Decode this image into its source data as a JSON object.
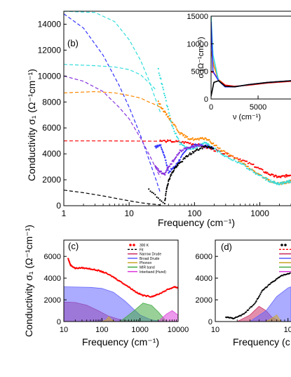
{
  "chart_data": [
    {
      "panel": "(b)",
      "type": "line",
      "xlabel": "Frequency (cm⁻¹)",
      "ylabel": "Conductivity σ₁ (Ω⁻¹cm⁻¹)",
      "xscale": "log",
      "xlim": [
        1,
        3000
      ],
      "ylim": [
        0,
        15000
      ],
      "xticks": [
        "1",
        "10",
        "100",
        "1000"
      ],
      "yticks": [
        "0",
        "2000",
        "4000",
        "6000",
        "8000",
        "10000",
        "12000",
        "14000"
      ],
      "series": [
        {
          "color": "#3333ff",
          "style": "dashed",
          "x": [
            1,
            2,
            4,
            7,
            10,
            15,
            20,
            25,
            30
          ],
          "y": [
            14800,
            13700,
            11600,
            9300,
            7600,
            5400,
            3600,
            2200,
            1000
          ]
        },
        {
          "color": "#33dddd",
          "style": "dashed",
          "x": [
            1,
            3,
            6,
            10,
            15,
            20,
            25,
            30
          ],
          "y": [
            15000,
            14900,
            14200,
            12800,
            11200,
            9700,
            8300,
            7200
          ]
        },
        {
          "color": "#33dddd",
          "style": "dashed",
          "x": [
            1,
            3,
            6,
            10,
            15,
            20,
            25
          ],
          "y": [
            10900,
            10800,
            10700,
            10500,
            10100,
            9500,
            9000
          ]
        },
        {
          "color": "#8833dd",
          "style": "dashed",
          "x": [
            1,
            2,
            4,
            7,
            10,
            15,
            20,
            25,
            30
          ],
          "y": [
            10000,
            9600,
            8800,
            7600,
            6700,
            5200,
            4000,
            3000,
            2200
          ]
        },
        {
          "color": "#ff8800",
          "style": "dashed",
          "x": [
            1,
            3,
            6,
            10,
            15,
            20,
            25,
            30
          ],
          "y": [
            8700,
            8800,
            8700,
            8500,
            8300,
            8000,
            7800,
            7600
          ]
        },
        {
          "color": "#ff0000",
          "style": "dashed",
          "x": [
            1,
            5,
            10,
            20,
            30,
            50,
            80
          ],
          "y": [
            5000,
            5000,
            4990,
            4980,
            4970,
            4950,
            4900
          ]
        },
        {
          "color": "#000000",
          "style": "dashed",
          "x": [
            1,
            2,
            4,
            7,
            10,
            15,
            20,
            30
          ],
          "y": [
            1200,
            1000,
            750,
            520,
            380,
            230,
            150,
            60
          ]
        },
        {
          "color": "#ff0000",
          "style": "points",
          "x": [
            30,
            50,
            80,
            120,
            200,
            300,
            500,
            800,
            1200,
            1600,
            2000,
            2500,
            3000
          ],
          "y": [
            5000,
            4950,
            4850,
            4650,
            4300,
            4000,
            3600,
            3100,
            2600,
            2300,
            2200,
            2300,
            2400
          ]
        },
        {
          "color": "#ff8800",
          "style": "points",
          "x": [
            28,
            35,
            45,
            60,
            80,
            110,
            150,
            200,
            300,
            500,
            800,
            1200,
            1600,
            2000,
            2500,
            3000
          ],
          "y": [
            8000,
            7200,
            6500,
            5600,
            5200,
            5100,
            5200,
            4700,
            4100,
            3400,
            2700,
            2100,
            1800,
            1700,
            1800,
            1900
          ]
        },
        {
          "color": "#33dddd",
          "style": "points",
          "x": [
            28,
            35,
            45,
            60,
            80,
            110,
            150,
            200,
            300,
            500,
            800,
            1200,
            1600,
            2000,
            2500,
            3000
          ],
          "y": [
            10500,
            8500,
            6200,
            4800,
            4400,
            4500,
            4900,
            4400,
            3800,
            3300,
            2600,
            2100,
            1800,
            1700,
            1800,
            1900
          ]
        },
        {
          "color": "#3333ff",
          "style": "points",
          "x": [
            25,
            30,
            35,
            40,
            50,
            60,
            80,
            110,
            150,
            200
          ],
          "y": [
            4500,
            4700,
            3800,
            2600,
            3000,
            3600,
            4500,
            4700,
            4600,
            4400
          ]
        },
        {
          "color": "#8833dd",
          "style": "points",
          "x": [
            25,
            30,
            35,
            40,
            50,
            60,
            80,
            110,
            150
          ],
          "y": [
            3000,
            2600,
            2400,
            3000,
            3600,
            4200,
            4500,
            4600,
            4500
          ]
        },
        {
          "color": "#000000",
          "style": "points",
          "x": [
            20,
            35,
            38,
            42,
            50,
            60,
            80,
            110,
            150,
            200
          ],
          "y": [
            1200,
            200,
            1500,
            2200,
            2900,
            3300,
            3900,
            4300,
            4600,
            4400
          ]
        }
      ]
    },
    {
      "panel": "inset",
      "type": "line",
      "xlabel": "ν (cm⁻¹)",
      "ylabel": "σ (Ω⁻¹cm⁻¹)",
      "xlim": [
        0,
        8500
      ],
      "ylim": [
        0,
        15000
      ],
      "xticks": [
        "0",
        "5000"
      ],
      "yticks": [
        "0",
        "5000",
        "10000",
        "15000"
      ],
      "series": [
        {
          "color": "#ff0000",
          "x": [
            0,
            300,
            800,
            1500,
            2500,
            4000,
            6000,
            8500
          ],
          "y": [
            5000,
            4700,
            3500,
            2500,
            2300,
            2500,
            2900,
            3200
          ]
        },
        {
          "color": "#ff8800",
          "x": [
            0,
            300,
            800,
            1500,
            2500,
            4000,
            6000,
            8500
          ],
          "y": [
            8700,
            6000,
            3500,
            2200,
            2200,
            2600,
            3000,
            3300
          ]
        },
        {
          "color": "#33dddd",
          "x": [
            0,
            200,
            800,
            1500,
            2500,
            4000,
            6000,
            8500
          ],
          "y": [
            15000,
            8000,
            3300,
            2200,
            2200,
            2600,
            3000,
            3300
          ]
        },
        {
          "color": "#3333ff",
          "x": [
            0,
            200,
            800,
            1500,
            2500,
            4000,
            6000,
            8500
          ],
          "y": [
            14000,
            5000,
            3300,
            2200,
            2200,
            2600,
            3000,
            3300
          ]
        },
        {
          "color": "#000000",
          "x": [
            0,
            300,
            800,
            1500,
            2500,
            4000,
            6000,
            8500
          ],
          "y": [
            500,
            3000,
            3300,
            2300,
            2200,
            2600,
            3000,
            3300
          ]
        }
      ]
    },
    {
      "panel": "(c)",
      "type": "area",
      "xlabel": "Frequency (cm⁻¹)",
      "ylabel": "Conductivity σ₁ (Ω⁻¹cm⁻¹)",
      "xscale": "log",
      "xlim": [
        10,
        10000
      ],
      "ylim": [
        0,
        7500
      ],
      "xticks": [
        "10",
        "100",
        "1000",
        "10000"
      ],
      "yticks": [
        "0",
        "2000",
        "4000",
        "6000"
      ],
      "legend": [
        "300 K",
        "Fit",
        "Narrow Drude",
        "Broad Drude",
        "Phonon",
        "MIR band",
        "Interband (Hund)"
      ],
      "series": [
        {
          "name": "300 K",
          "color": "#ff0000",
          "style": "points",
          "x": [
            13,
            15,
            20,
            30,
            50,
            80,
            120,
            200,
            300,
            500,
            800,
            1200,
            2000,
            3000,
            5000,
            8000,
            10000
          ],
          "y": [
            5800,
            5200,
            4900,
            4950,
            4850,
            4700,
            4500,
            4100,
            3700,
            3200,
            2700,
            2400,
            2300,
            2500,
            2900,
            3200,
            3100
          ]
        },
        {
          "name": "Narrow Drude",
          "color": "#cc3366",
          "style": "area",
          "x": [
            10,
            20,
            40,
            80,
            150,
            300,
            600,
            1000
          ],
          "y": [
            1800,
            1750,
            1500,
            1000,
            500,
            180,
            40,
            0
          ]
        },
        {
          "name": "Broad Drude",
          "color": "#6666ff",
          "style": "area",
          "x": [
            10,
            50,
            100,
            200,
            400,
            700,
            1000,
            2000,
            4000
          ],
          "y": [
            3200,
            3150,
            3050,
            2700,
            1900,
            1100,
            600,
            150,
            0
          ]
        },
        {
          "name": "Phonon",
          "color": "#ccaa33",
          "style": "area",
          "x": [
            100,
            130,
            150,
            180,
            220
          ],
          "y": [
            0,
            150,
            450,
            150,
            0
          ]
        },
        {
          "name": "MIR band",
          "color": "#44aa44",
          "style": "area",
          "x": [
            300,
            600,
            1200,
            2000,
            3000,
            5000
          ],
          "y": [
            0,
            800,
            1700,
            1500,
            900,
            0
          ]
        },
        {
          "name": "Interband (Hund)",
          "color": "#dd44dd",
          "style": "area",
          "x": [
            3000,
            5000,
            7000,
            10000
          ],
          "y": [
            0,
            700,
            1000,
            600
          ]
        }
      ]
    },
    {
      "panel": "(d)",
      "type": "area",
      "xlabel": "Frequency (c",
      "ylabel": "",
      "xscale": "log",
      "xlim": [
        10,
        110
      ],
      "ylim": [
        0,
        7500
      ],
      "xticks": [
        "10",
        "10"
      ],
      "yticks": [
        "0",
        "2000",
        "4000",
        "6000"
      ],
      "series": [
        {
          "color": "#000000",
          "style": "points",
          "x": [
            14,
            18,
            25,
            35,
            45,
            60,
            80,
            110
          ],
          "y": [
            400,
            300,
            700,
            1700,
            2900,
            3600,
            4200,
            4500
          ]
        },
        {
          "color": "#cc3366",
          "style": "area",
          "x": [
            20,
            30,
            40,
            50,
            60,
            80
          ],
          "y": [
            0,
            600,
            1400,
            1000,
            400,
            0
          ]
        },
        {
          "color": "#6666ff",
          "style": "area",
          "x": [
            30,
            50,
            70,
            100,
            110
          ],
          "y": [
            0,
            1000,
            2300,
            3100,
            3200
          ]
        },
        {
          "color": "#ccaa33",
          "style": "area",
          "x": [
            50,
            60,
            70,
            80
          ],
          "y": [
            0,
            300,
            600,
            0
          ]
        }
      ]
    }
  ]
}
